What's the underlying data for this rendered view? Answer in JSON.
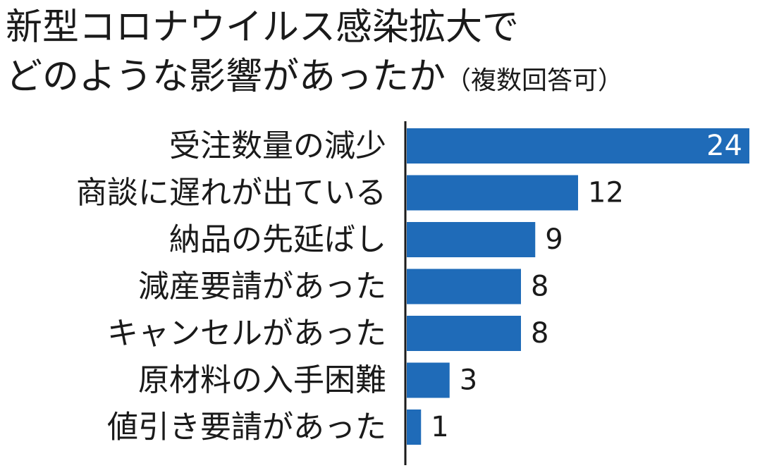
{
  "title_line1": "新型コロナウイルス感染拡大で",
  "title_line2": "どのような影響があったか",
  "subtitle": "（複数回答可）",
  "chart_data": {
    "type": "bar",
    "orientation": "horizontal",
    "title": "新型コロナウイルス感染拡大でどのような影響があったか（複数回答可）",
    "categories": [
      "受注数量の減少",
      "商談に遅れが出ている",
      "納品の先延ばし",
      "減産要請があった",
      "キャンセルがあった",
      "原材料の入手困難",
      "値引き要請があった"
    ],
    "values": [
      24,
      12,
      9,
      8,
      8,
      3,
      1
    ],
    "xlim": [
      0,
      24
    ],
    "grid": false,
    "legend": "none",
    "bar_color": "#1f6bb8",
    "label_color": "#1a1a1a",
    "inside_label_color": "#ffffff"
  }
}
